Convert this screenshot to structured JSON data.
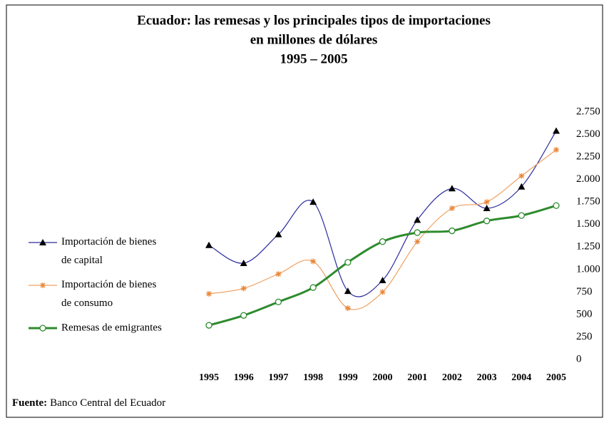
{
  "chart_data": {
    "type": "line",
    "title": [
      "Ecuador: las remesas y los principales tipos de importaciones",
      "en millones de dólares",
      "1995 – 2005"
    ],
    "categories": [
      "1995",
      "1996",
      "1997",
      "1998",
      "1999",
      "2000",
      "2001",
      "2002",
      "2003",
      "2004",
      "2005"
    ],
    "series": [
      {
        "name": "Importación de bienes de capital",
        "color": "#2b2b9e",
        "marker": "triangle",
        "marker_color": "#000000",
        "values": [
          1270,
          1070,
          1390,
          1750,
          760,
          880,
          1550,
          1900,
          1680,
          1920,
          2540
        ]
      },
      {
        "name": "Importación de bienes de consumo",
        "color": "#f0a060",
        "marker": "asterisk",
        "marker_color": "#e8873a",
        "values": [
          730,
          790,
          950,
          1090,
          570,
          750,
          1310,
          1680,
          1750,
          2040,
          2330
        ]
      },
      {
        "name": "Remesas de emigrantes",
        "color": "#2e8b2e",
        "marker": "circle",
        "marker_color": "#2e8b2e",
        "values": [
          380,
          490,
          640,
          800,
          1080,
          1310,
          1410,
          1430,
          1540,
          1600,
          1710
        ]
      }
    ],
    "ylim": [
      0,
      2750
    ],
    "yticks": [
      0,
      250,
      500,
      750,
      {
        "value": 1000,
        "label": "1.000"
      },
      {
        "value": 1250,
        "label": "1.250"
      },
      {
        "value": 1500,
        "label": "1.500"
      },
      {
        "value": 1750,
        "label": "1.750"
      },
      {
        "value": 2000,
        "label": "2.000"
      },
      {
        "value": 2250,
        "label": "2.250"
      },
      {
        "value": 2500,
        "label": "2.500"
      },
      {
        "value": 2750,
        "label": "2.750"
      }
    ],
    "smooth": true,
    "legend": "left",
    "source_label": "Fuente:",
    "source": "Banco Central del Ecuador"
  }
}
